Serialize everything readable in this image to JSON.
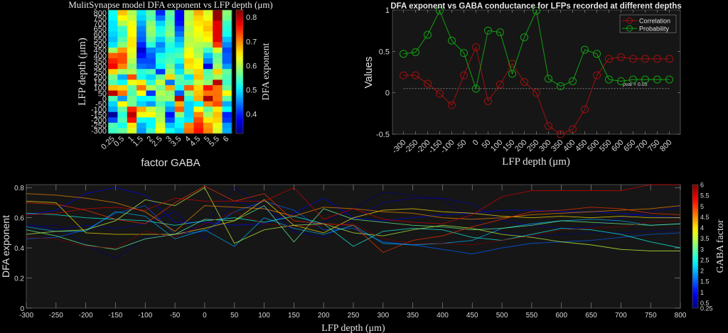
{
  "chart_data": [
    {
      "type": "heatmap",
      "title": "MulitSynapse model DFA exponent vs LFP depth (μm)",
      "xlabel": "factor GABA",
      "ylabel": "LFP depth (μm)",
      "colorbar_label": "DFA exponent",
      "colorbar_ticks": [
        "0.4",
        "0.5",
        "0.6",
        "0.7",
        "0.8"
      ],
      "clim": [
        0.32,
        0.83
      ],
      "colormap": "jet",
      "x_categories": [
        "0.25",
        "0.5",
        "1",
        "1.5",
        "2",
        "2.5",
        "3",
        "3.5",
        "4",
        "4.5",
        "5",
        "5.5",
        "6"
      ],
      "y_categories": [
        "800",
        "750",
        "700",
        "650",
        "600",
        "550",
        "500",
        "450",
        "400",
        "350",
        "300",
        "250",
        "200",
        "150",
        "100",
        "50",
        "0",
        "-50",
        "-100",
        "-150",
        "-200",
        "-250",
        "-300"
      ],
      "values": [
        [
          0.52,
          0.67,
          0.6,
          0.5,
          0.56,
          0.4,
          0.56,
          0.38,
          0.6,
          0.68,
          0.62,
          0.82,
          0.58
        ],
        [
          0.51,
          0.64,
          0.61,
          0.49,
          0.55,
          0.44,
          0.55,
          0.38,
          0.6,
          0.66,
          0.63,
          0.82,
          0.57
        ],
        [
          0.5,
          0.6,
          0.63,
          0.47,
          0.58,
          0.49,
          0.56,
          0.39,
          0.61,
          0.65,
          0.66,
          0.78,
          0.54
        ],
        [
          0.5,
          0.54,
          0.64,
          0.45,
          0.59,
          0.52,
          0.57,
          0.42,
          0.6,
          0.64,
          0.67,
          0.78,
          0.53
        ],
        [
          0.49,
          0.53,
          0.64,
          0.44,
          0.58,
          0.53,
          0.58,
          0.44,
          0.61,
          0.63,
          0.65,
          0.78,
          0.52
        ],
        [
          0.48,
          0.55,
          0.65,
          0.43,
          0.56,
          0.49,
          0.55,
          0.47,
          0.6,
          0.62,
          0.64,
          0.78,
          0.48
        ],
        [
          0.5,
          0.58,
          0.65,
          0.4,
          0.53,
          0.45,
          0.53,
          0.49,
          0.61,
          0.6,
          0.59,
          0.74,
          0.45
        ],
        [
          0.59,
          0.69,
          0.63,
          0.36,
          0.45,
          0.47,
          0.52,
          0.53,
          0.63,
          0.59,
          0.54,
          0.62,
          0.42
        ],
        [
          0.72,
          0.73,
          0.62,
          0.39,
          0.43,
          0.52,
          0.54,
          0.55,
          0.64,
          0.6,
          0.48,
          0.56,
          0.43
        ],
        [
          0.75,
          0.73,
          0.6,
          0.42,
          0.42,
          0.53,
          0.55,
          0.52,
          0.66,
          0.63,
          0.45,
          0.57,
          0.43
        ],
        [
          0.77,
          0.7,
          0.58,
          0.44,
          0.43,
          0.51,
          0.57,
          0.48,
          0.65,
          0.64,
          0.37,
          0.59,
          0.46
        ],
        [
          0.66,
          0.59,
          0.6,
          0.53,
          0.55,
          0.41,
          0.59,
          0.5,
          0.6,
          0.66,
          0.55,
          0.66,
          0.56
        ],
        [
          0.57,
          0.47,
          0.73,
          0.52,
          0.49,
          0.56,
          0.66,
          0.56,
          0.5,
          0.67,
          0.56,
          0.59,
          0.55
        ],
        [
          0.55,
          0.51,
          0.63,
          0.65,
          0.53,
          0.61,
          0.44,
          0.55,
          0.55,
          0.61,
          0.58,
          0.8,
          0.54
        ],
        [
          0.67,
          0.66,
          0.56,
          0.71,
          0.6,
          0.57,
          0.68,
          0.52,
          0.72,
          0.66,
          0.76,
          0.71,
          0.56
        ],
        [
          0.8,
          0.71,
          0.55,
          0.64,
          0.41,
          0.6,
          0.58,
          0.43,
          0.58,
          0.67,
          0.71,
          0.71,
          0.64
        ],
        [
          0.55,
          0.46,
          0.57,
          0.51,
          0.52,
          0.58,
          0.59,
          0.8,
          0.53,
          0.68,
          0.81,
          0.71,
          0.56
        ],
        [
          0.49,
          0.64,
          0.57,
          0.49,
          0.46,
          0.55,
          0.49,
          0.68,
          0.49,
          0.51,
          0.7,
          0.73,
          0.47
        ],
        [
          0.47,
          0.56,
          0.75,
          0.68,
          0.61,
          0.58,
          0.46,
          0.72,
          0.49,
          0.64,
          0.56,
          0.65,
          0.51
        ],
        [
          0.33,
          0.53,
          0.8,
          0.63,
          0.64,
          0.59,
          0.39,
          0.58,
          0.49,
          0.7,
          0.59,
          0.67,
          0.4
        ],
        [
          0.42,
          0.55,
          0.76,
          0.52,
          0.51,
          0.6,
          0.42,
          0.52,
          0.5,
          0.73,
          0.65,
          0.66,
          0.41
        ],
        [
          0.55,
          0.52,
          0.65,
          0.47,
          0.51,
          0.62,
          0.48,
          0.51,
          0.7,
          0.75,
          0.69,
          0.63,
          0.46
        ],
        [
          0.54,
          0.56,
          0.62,
          0.46,
          0.54,
          0.63,
          0.52,
          0.49,
          0.71,
          0.76,
          0.7,
          0.62,
          0.47
        ]
      ]
    },
    {
      "type": "line",
      "title": "DFA exponent vs GABA conductance for LFPs recorded at different depths",
      "xlabel": "LFP depth (μm)",
      "ylabel": "Values",
      "x": [
        -300,
        -250,
        -200,
        -150,
        -100,
        -50,
        0,
        50,
        100,
        150,
        200,
        250,
        300,
        350,
        400,
        450,
        500,
        550,
        600,
        650,
        700,
        750,
        800
      ],
      "x_tick_labels": [
        "-300",
        "-250",
        "-200",
        "-150",
        "-100",
        "-50",
        "0",
        "50",
        "100",
        "150",
        "200",
        "250",
        "300",
        "350",
        "400",
        "450",
        "500",
        "550",
        "600",
        "650",
        "700",
        "750",
        "800"
      ],
      "y_ticks": [
        "-0.5",
        "0",
        "0.5",
        "1"
      ],
      "ylim": [
        -0.5,
        1
      ],
      "legend": "top-right",
      "series": [
        {
          "name": "Correlation",
          "color": "#a01010",
          "marker": "circle",
          "values": [
            0.21,
            0.21,
            0.11,
            -0.01,
            -0.15,
            0.21,
            0.55,
            -0.1,
            0.1,
            0.35,
            0.13,
            0.0,
            -0.4,
            -0.5,
            -0.44,
            -0.2,
            0.21,
            0.41,
            0.43,
            0.41,
            0.41,
            0.41,
            0.41
          ]
        },
        {
          "name": "Probability",
          "color": "#13a013",
          "marker": "circle",
          "values": [
            0.47,
            0.49,
            0.7,
            0.99,
            0.63,
            0.48,
            0.05,
            0.75,
            0.73,
            0.23,
            0.67,
            0.99,
            0.17,
            0.08,
            0.14,
            0.52,
            0.47,
            0.16,
            0.14,
            0.16,
            0.16,
            0.16,
            0.16
          ]
        }
      ],
      "reference_line": {
        "value": 0.05,
        "label": "pval = 0.05"
      }
    },
    {
      "type": "line",
      "xlabel": "LFP depth (μm)",
      "ylabel": "DFA exponent",
      "xlim": [
        -300,
        800
      ],
      "ylim": [
        0,
        0.82
      ],
      "x_tick_labels": [
        "-300",
        "-250",
        "-200",
        "-150",
        "-100",
        "-50",
        "0",
        "50",
        "100",
        "150",
        "200",
        "250",
        "300",
        "350",
        "400",
        "450",
        "500",
        "550",
        "600",
        "650",
        "700",
        "750",
        "800"
      ],
      "y_tick_labels": [
        "0",
        "0.2",
        "0.4",
        "0.6",
        "0.8"
      ],
      "colorbar_label": "GABA factor",
      "colorbar_ticks": [
        "0.25",
        "0.5",
        "1",
        "1.5",
        "2",
        "2.5",
        "3",
        "3.5",
        "4",
        "4.5",
        "5",
        "5.5",
        "6"
      ],
      "colorbar_range": [
        0.25,
        6
      ],
      "series_source": "one line per GABA factor, DFA exponent vs depth (same values as heatmap columns)"
    }
  ]
}
